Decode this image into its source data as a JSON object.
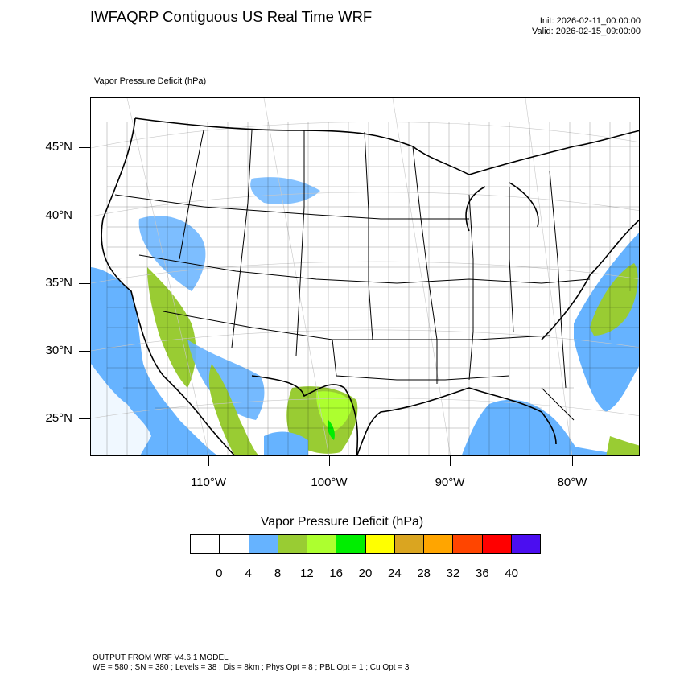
{
  "title": "IWFAQRP Contiguous US Real Time WRF",
  "init_text": "Init: 2026-02-11_00:00:00",
  "valid_text": "Valid: 2026-02-15_09:00:00",
  "field_label": "Vapor Pressure Deficit   (hPa)",
  "lat_labels": [
    "45°N",
    "40°N",
    "35°N",
    "30°N",
    "25°N"
  ],
  "lon_labels": [
    "110°W",
    "100°W",
    "90°W",
    "80°W"
  ],
  "colorbar": {
    "title": "Vapor Pressure Deficit  (hPa)",
    "colors": [
      "#ffffff",
      "#ffffff",
      "#66b3ff",
      "#99cc33",
      "#adff2f",
      "#00ee00",
      "#ffff00",
      "#daa520",
      "#ffa500",
      "#ff4500",
      "#ff0000",
      "#4b0ef0"
    ],
    "labels": [
      "0",
      "4",
      "8",
      "12",
      "16",
      "20",
      "24",
      "28",
      "32",
      "36",
      "40"
    ]
  },
  "footer": {
    "line1": "OUTPUT FROM WRF V4.6.1 MODEL",
    "line2": "WE = 580 ; SN = 380 ; Levels = 38 ; Dis = 8km ; Phys Opt = 8 ; PBL Opt = 1 ; Cu Opt = 3"
  }
}
